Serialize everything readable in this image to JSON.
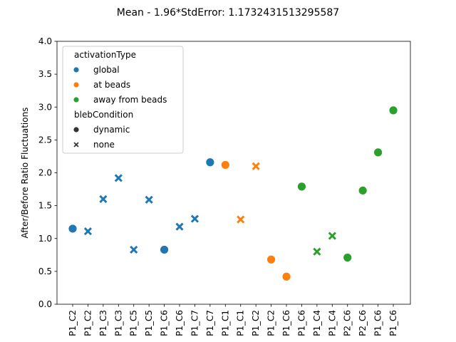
{
  "chart_data": {
    "type": "scatter",
    "title": "Mean - 1.96*StdError: 1.1732431513295587",
    "xlabel": "",
    "ylabel": "After/Before Ratio Fluctuations",
    "ylim": [
      0.0,
      4.0
    ],
    "yticks": [
      "0.0",
      "0.5",
      "1.0",
      "1.5",
      "2.0",
      "2.5",
      "3.0",
      "3.5",
      "4.0"
    ],
    "grid": false,
    "legend_position": "upper-left",
    "categories": [
      "P1_C2",
      "P1_C2",
      "P1_C3",
      "P1_C3",
      "P1_C5",
      "P1_C5",
      "P1_C6",
      "P1_C6",
      "P1_C7",
      "P1_C7",
      "P1_C1",
      "P1_C1",
      "P1_C2",
      "P1_C2",
      "P1_C6",
      "P1_C6",
      "P1_C4",
      "P1_C4",
      "P2_C6",
      "P2_C6",
      "P1_C6",
      "P1_C6"
    ],
    "hue": {
      "title": "activationType",
      "levels": [
        {
          "label": "global",
          "color": "#1f77b4"
        },
        {
          "label": "at beads",
          "color": "#ff7f0e"
        },
        {
          "label": "away from beads",
          "color": "#2ca02c"
        }
      ]
    },
    "style": {
      "title": "blebCondition",
      "levels": [
        {
          "label": "dynamic",
          "marker": "circle"
        },
        {
          "label": "none",
          "marker": "x"
        }
      ]
    },
    "points": [
      {
        "x": 0,
        "y": 1.15,
        "activationType": "global",
        "blebCondition": "dynamic"
      },
      {
        "x": 1,
        "y": 1.11,
        "activationType": "global",
        "blebCondition": "none"
      },
      {
        "x": 2,
        "y": 1.6,
        "activationType": "global",
        "blebCondition": "none"
      },
      {
        "x": 3,
        "y": 1.92,
        "activationType": "global",
        "blebCondition": "none"
      },
      {
        "x": 4,
        "y": 0.83,
        "activationType": "global",
        "blebCondition": "none"
      },
      {
        "x": 5,
        "y": 1.59,
        "activationType": "global",
        "blebCondition": "none"
      },
      {
        "x": 6,
        "y": 0.83,
        "activationType": "global",
        "blebCondition": "dynamic"
      },
      {
        "x": 7,
        "y": 1.18,
        "activationType": "global",
        "blebCondition": "none"
      },
      {
        "x": 8,
        "y": 1.3,
        "activationType": "global",
        "blebCondition": "none"
      },
      {
        "x": 9,
        "y": 2.16,
        "activationType": "global",
        "blebCondition": "dynamic"
      },
      {
        "x": 10,
        "y": 2.12,
        "activationType": "at beads",
        "blebCondition": "dynamic"
      },
      {
        "x": 11,
        "y": 1.29,
        "activationType": "at beads",
        "blebCondition": "none"
      },
      {
        "x": 12,
        "y": 2.1,
        "activationType": "at beads",
        "blebCondition": "none"
      },
      {
        "x": 13,
        "y": 0.68,
        "activationType": "at beads",
        "blebCondition": "dynamic"
      },
      {
        "x": 14,
        "y": 0.42,
        "activationType": "at beads",
        "blebCondition": "dynamic"
      },
      {
        "x": 15,
        "y": 1.79,
        "activationType": "away from beads",
        "blebCondition": "dynamic"
      },
      {
        "x": 16,
        "y": 0.8,
        "activationType": "away from beads",
        "blebCondition": "none"
      },
      {
        "x": 17,
        "y": 1.04,
        "activationType": "away from beads",
        "blebCondition": "none"
      },
      {
        "x": 18,
        "y": 0.71,
        "activationType": "away from beads",
        "blebCondition": "dynamic"
      },
      {
        "x": 19,
        "y": 1.73,
        "activationType": "away from beads",
        "blebCondition": "dynamic"
      },
      {
        "x": 20,
        "y": 2.31,
        "activationType": "away from beads",
        "blebCondition": "dynamic"
      },
      {
        "x": 21,
        "y": 2.95,
        "activationType": "away from beads",
        "blebCondition": "dynamic"
      }
    ]
  }
}
